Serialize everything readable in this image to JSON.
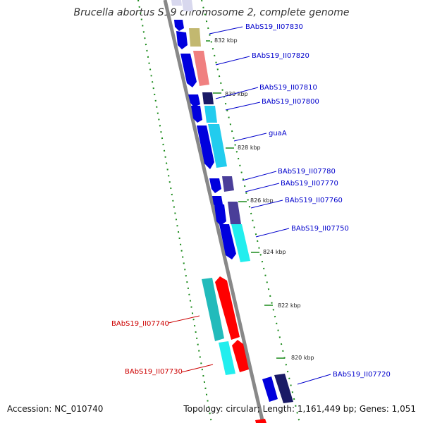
{
  "title": "Brucella abortus S19 chromosome 2, complete genome",
  "footer": {
    "accession": "Accession: NC_010740",
    "topology": "Topology: circular; Length: 1,161,449 bp; Genes: 1,051"
  },
  "colors": {
    "plus_strand_label": "#0000cc",
    "minus_strand_label": "#cc0000",
    "backbone": "#888888",
    "gc_track": "#1a8a1a"
  },
  "ticks": [
    {
      "label": "832 kbp"
    },
    {
      "label": "830 kbp"
    },
    {
      "label": "828 kbp"
    },
    {
      "label": "826 kbp"
    },
    {
      "label": "824 kbp"
    },
    {
      "label": "822 kbp"
    },
    {
      "label": "820 kbp"
    }
  ],
  "genes": [
    {
      "label": "BAbS19_II07830",
      "strand": "+"
    },
    {
      "label": "BAbS19_II07820",
      "strand": "+"
    },
    {
      "label": "BAbS19_II07810",
      "strand": "+"
    },
    {
      "label": "BAbS19_II07800",
      "strand": "+"
    },
    {
      "label": "guaA",
      "strand": "+"
    },
    {
      "label": "BAbS19_II07780",
      "strand": "+"
    },
    {
      "label": "BAbS19_II07770",
      "strand": "+"
    },
    {
      "label": "BAbS19_II07760",
      "strand": "+"
    },
    {
      "label": "BAbS19_II07750",
      "strand": "+"
    },
    {
      "label": "BAbS19_II07740",
      "strand": "-"
    },
    {
      "label": "BAbS19_II07730",
      "strand": "-"
    },
    {
      "label": "BAbS19_II07720",
      "strand": "+"
    }
  ]
}
